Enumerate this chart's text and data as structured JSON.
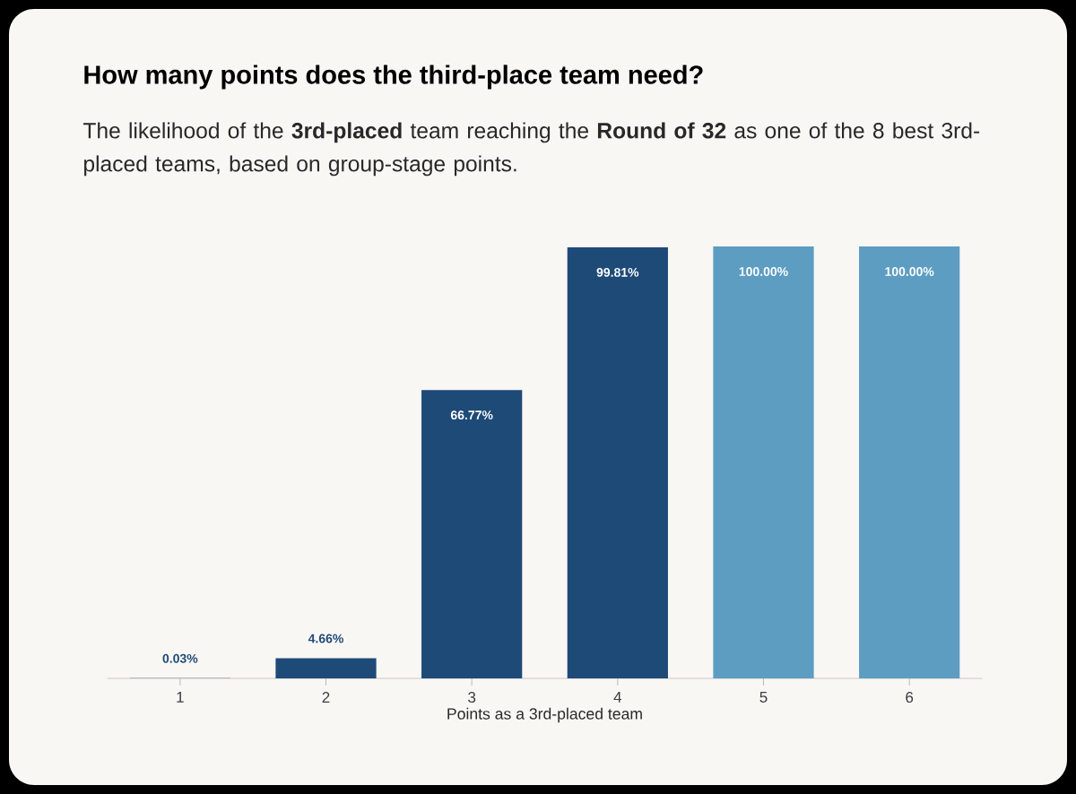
{
  "chart_data": {
    "type": "bar",
    "title": "How many points does the third-place team need?",
    "subtitle": "The likelihood of the **3rd-placed** team reaching the **Round of 32** as one of the 8 best 3rd-placed teams, based on group-stage points.",
    "xlabel": "Points as a 3rd-placed team",
    "categories": [
      "1",
      "2",
      "3",
      "4",
      "5",
      "6"
    ],
    "values": [
      0.03,
      4.66,
      66.77,
      99.81,
      100.0,
      100.0
    ],
    "value_labels": [
      "0.03%",
      "4.66%",
      "66.77%",
      "99.81%",
      "100.00%",
      "100.00%"
    ],
    "colors": [
      "#1e4a78",
      "#1e4a78",
      "#1e4a78",
      "#1e4a78",
      "#5e9dc2",
      "#5e9dc2"
    ],
    "ylim": [
      0,
      100
    ],
    "tick_labels": "x"
  }
}
